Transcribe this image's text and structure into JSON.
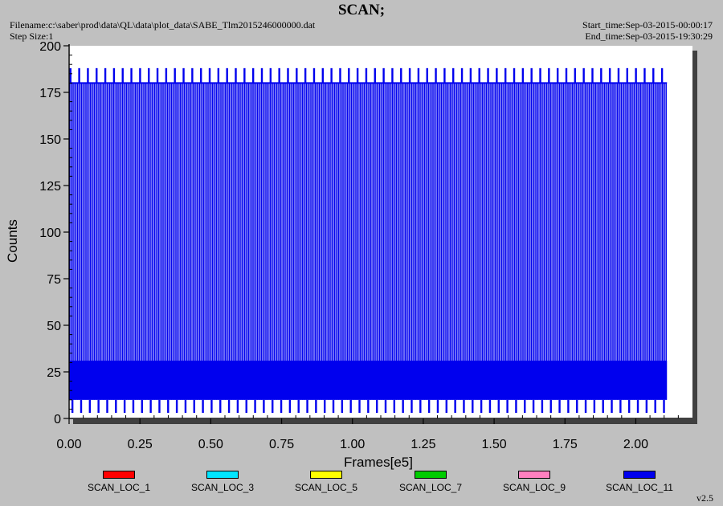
{
  "header": {
    "title": "SCAN;",
    "filename": "Filename:c:\\saber\\prod\\data\\QL\\data\\plot_data\\SABE_Tlm2015246000000.dat",
    "step_size": "Step Size:1",
    "start_time": "Start_time:Sep-03-2015-00:00:17",
    "end_time": "End_time:Sep-03-2015-19:30:29"
  },
  "chart_data": {
    "type": "line",
    "xlabel": "Frames[e5]",
    "ylabel": "Counts",
    "xlim": [
      0.0,
      2.2
    ],
    "ylim": [
      0,
      200
    ],
    "x_ticks": [
      "0.00",
      "0.25",
      "0.50",
      "0.75",
      "1.00",
      "1.25",
      "1.50",
      "1.75",
      "2.00"
    ],
    "x_tick_values": [
      0.0,
      0.25,
      0.5,
      0.75,
      1.0,
      1.25,
      1.5,
      1.75,
      2.0
    ],
    "y_ticks": [
      "0",
      "25",
      "50",
      "75",
      "100",
      "125",
      "150",
      "175",
      "200"
    ],
    "y_tick_values": [
      0,
      25,
      50,
      75,
      100,
      125,
      150,
      175,
      200
    ],
    "grid": false,
    "legend_position": "bottom",
    "series": [
      {
        "name": "SCAN_LOC_1",
        "color": "#ff0000",
        "values": []
      },
      {
        "name": "SCAN_LOC_3",
        "color": "#00e5ff",
        "values": []
      },
      {
        "name": "SCAN_LOC_5",
        "color": "#ffff00",
        "values": []
      },
      {
        "name": "SCAN_LOC_7",
        "color": "#00cc00",
        "values": []
      },
      {
        "name": "SCAN_LOC_9",
        "color": "#ff80c0",
        "values": []
      },
      {
        "name": "SCAN_LOC_11",
        "color": "#0000ee",
        "x_range": [
          0.0,
          2.11
        ],
        "band_low": 10,
        "band_high": 31,
        "plateau_high": 180,
        "peak_high": 188,
        "baseline_low": 3,
        "scan_period": 0.0307,
        "scan_count": 69
      }
    ]
  },
  "footer": {
    "version": "v2.5"
  }
}
